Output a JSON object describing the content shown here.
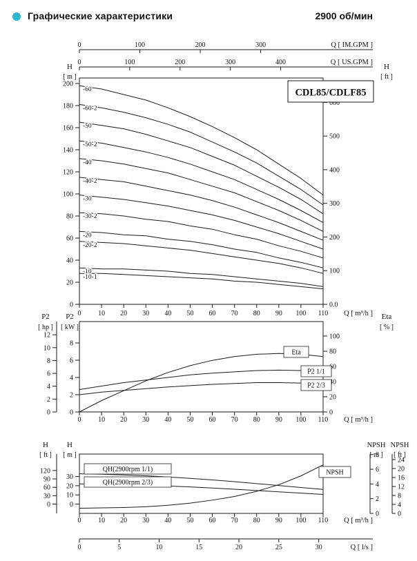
{
  "header": {
    "title": "Графические характеристики",
    "rpm": "2900 об/мин",
    "bullet_color": "#29b7d6"
  },
  "chart_data": [
    {
      "id": "main-qh",
      "type": "line",
      "title": "CDL85/CDLF85",
      "xlabel": "Q [ m³/h ]",
      "xlim": [
        0,
        110
      ],
      "ylim_m": [
        0,
        200
      ],
      "axis_labels": {
        "im_gpm": "Q [ IM.GPM ]",
        "us_gpm": "Q [ US.GPM ]",
        "left_name": "H",
        "left_unit": "[ m ]",
        "right_name": "H",
        "right_unit": "[ ft ]"
      },
      "ticks": {
        "im_gpm": [
          0,
          100,
          200,
          300
        ],
        "us_gpm": [
          0,
          100,
          200,
          300,
          400
        ],
        "h_m": [
          0,
          20,
          40,
          60,
          80,
          100,
          120,
          140,
          160,
          180,
          200
        ],
        "h_ft": [
          600,
          500,
          400,
          300,
          200,
          100,
          "0.0"
        ],
        "q_m3h": [
          0,
          10,
          20,
          30,
          40,
          50,
          60,
          70,
          80,
          90,
          100,
          110
        ]
      },
      "x": [
        0,
        10,
        20,
        30,
        40,
        50,
        60,
        70,
        80,
        90,
        100,
        110
      ],
      "series": [
        {
          "name": "-60",
          "unit": "m",
          "values": [
            198,
            195,
            190,
            185,
            178,
            170,
            161,
            151,
            140,
            127,
            114,
            99
          ]
        },
        {
          "name": "-60-2",
          "unit": "m",
          "values": [
            181,
            178,
            174,
            169,
            163,
            156,
            147,
            138,
            128,
            116,
            104,
            90
          ]
        },
        {
          "name": "-50",
          "unit": "m",
          "values": [
            165,
            162,
            159,
            154,
            148,
            142,
            134,
            126,
            116,
            106,
            95,
            82
          ]
        },
        {
          "name": "-50-2",
          "unit": "m",
          "values": [
            148,
            146,
            142,
            138,
            133,
            127,
            120,
            113,
            104,
            95,
            85,
            74
          ]
        },
        {
          "name": "-40",
          "unit": "m",
          "values": [
            132,
            130,
            127,
            123,
            119,
            113,
            107,
            101,
            93,
            85,
            76,
            66
          ]
        },
        {
          "name": "-40-2",
          "unit": "m",
          "values": [
            115,
            113,
            111,
            107,
            103,
            99,
            94,
            88,
            81,
            74,
            66,
            58
          ]
        },
        {
          "name": "-30",
          "unit": "m",
          "values": [
            99,
            97,
            95,
            92,
            89,
            85,
            81,
            76,
            70,
            64,
            57,
            50
          ]
        },
        {
          "name": "-30-2",
          "unit": "m",
          "values": [
            83,
            82,
            80,
            77,
            75,
            71,
            68,
            63,
            59,
            53,
            48,
            42
          ]
        },
        {
          "name": "-20",
          "unit": "m",
          "values": [
            66,
            65,
            63,
            62,
            59,
            57,
            54,
            50,
            47,
            42,
            38,
            33
          ]
        },
        {
          "name": "-20-2",
          "unit": "m",
          "values": [
            57,
            56,
            55,
            53,
            51,
            49,
            46,
            43,
            40,
            37,
            33,
            28
          ]
        },
        {
          "name": "-10",
          "unit": "m",
          "values": [
            33,
            32,
            32,
            31,
            30,
            28,
            27,
            25,
            23,
            21,
            19,
            16
          ]
        },
        {
          "name": "-10-1",
          "unit": "m",
          "values": [
            28,
            28,
            27,
            26,
            25,
            24,
            23,
            21,
            20,
            18,
            16,
            14
          ]
        }
      ]
    },
    {
      "id": "power-eta",
      "type": "line",
      "xlabel": "Q [ m³/h ]",
      "xlim": [
        0,
        110
      ],
      "axis_labels": {
        "left_outer_name": "P2",
        "left_outer_unit": "[ hp ]",
        "left_inner_name": "P2",
        "left_inner_unit": "[ kW ]",
        "right_name": "Eta",
        "right_unit": "[ % ]"
      },
      "ticks": {
        "p2_hp": [
          12,
          10,
          8,
          6,
          4,
          2,
          0
        ],
        "p2_kw": [
          8,
          6,
          4,
          2,
          0
        ],
        "eta": [
          100,
          80,
          60,
          40,
          20,
          0
        ],
        "q_m3h": [
          0,
          10,
          20,
          30,
          40,
          50,
          60,
          70,
          80,
          90,
          100,
          110
        ]
      },
      "x": [
        0,
        10,
        20,
        30,
        40,
        50,
        60,
        70,
        80,
        90,
        100,
        110
      ],
      "series": [
        {
          "name": "Eta",
          "unit": "%",
          "values": [
            0,
            15,
            28,
            41,
            52,
            61,
            68,
            73,
            76,
            77,
            76,
            73
          ]
        },
        {
          "name": "P2 1/1",
          "unit": "kW",
          "values": [
            2.6,
            3.0,
            3.4,
            3.7,
            4.0,
            4.3,
            4.5,
            4.65,
            4.8,
            4.85,
            4.8,
            4.7
          ]
        },
        {
          "name": "P2 2/3",
          "unit": "kW",
          "values": [
            2.0,
            2.3,
            2.5,
            2.7,
            2.9,
            3.05,
            3.2,
            3.3,
            3.4,
            3.4,
            3.35,
            3.25
          ]
        }
      ]
    },
    {
      "id": "qh-npsh",
      "type": "line",
      "xlabel": "Q [ m³/h ]",
      "xlabel2": "Q [ l/s ]",
      "xlim": [
        0,
        110
      ],
      "axis_labels": {
        "left_outer_name": "H",
        "left_outer_unit": "[ ft ]",
        "left_inner_name": "H",
        "left_inner_unit": "[ m ]",
        "right_inner_name": "NPSH",
        "right_inner_unit": "[ m ]",
        "right_outer_name": "NPSH",
        "right_outer_unit": "[ ft ]"
      },
      "ticks": {
        "h_ft": [
          120,
          90,
          60,
          30,
          0
        ],
        "h_m": [
          30,
          20,
          10,
          0
        ],
        "npsh_m": [
          8,
          6,
          4,
          2,
          0
        ],
        "npsh_ft": [
          24,
          20,
          16,
          12,
          8,
          4,
          0
        ],
        "q_m3h": [
          0,
          10,
          20,
          30,
          40,
          50,
          60,
          70,
          80,
          90,
          100,
          110
        ],
        "q_ls": [
          0,
          5,
          10,
          15,
          20,
          25,
          30
        ]
      },
      "x": [
        0,
        10,
        20,
        30,
        40,
        50,
        60,
        70,
        80,
        90,
        100,
        110
      ],
      "series": [
        {
          "name": "QH(2900rpm 1/1)",
          "unit": "m",
          "values": [
            33,
            32.5,
            31.8,
            30.8,
            29.5,
            28,
            26.3,
            24.4,
            22.3,
            20.2,
            18,
            16
          ]
        },
        {
          "name": "QH(2900rpm 2/3)",
          "unit": "m",
          "values": [
            22,
            21.7,
            21.2,
            20.5,
            19.7,
            18.7,
            17.5,
            16.2,
            14.8,
            13.3,
            11.9,
            10.5
          ]
        },
        {
          "name": "NPSH",
          "unit": "m",
          "values": [
            0.7,
            0.75,
            0.8,
            0.9,
            1.1,
            1.4,
            1.8,
            2.3,
            3.0,
            3.9,
            5.1,
            6.6
          ]
        }
      ]
    }
  ]
}
